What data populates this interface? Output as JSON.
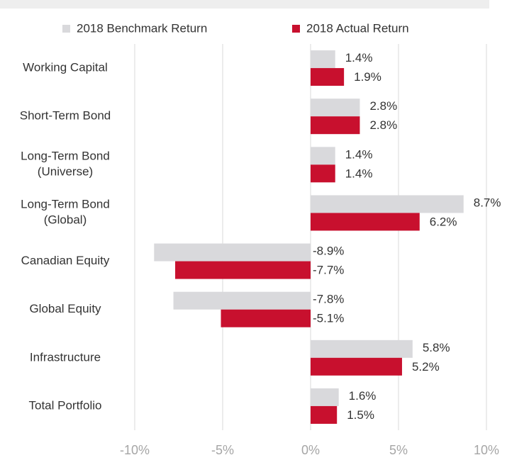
{
  "chart_data": {
    "type": "bar",
    "orientation": "horizontal",
    "categories": [
      "Working Capital",
      "Short-Term Bond",
      "Long-Term Bond (Universe)",
      "Long-Term Bond (Global)",
      "Canadian Equity",
      "Global Equity",
      "Infrastructure",
      "Total Portfolio"
    ],
    "series": [
      {
        "name": "2018 Benchmark Return",
        "color": "#d9d9dc",
        "values": [
          1.4,
          2.8,
          1.4,
          8.7,
          -8.9,
          -7.8,
          5.8,
          1.6
        ],
        "value_labels": [
          "1.4%",
          "2.8%",
          "1.4%",
          "8.7%",
          "-8.9%",
          "-7.8%",
          "5.8%",
          "1.6%"
        ]
      },
      {
        "name": "2018 Actual Return",
        "color": "#c8102e",
        "values": [
          1.9,
          2.8,
          1.4,
          6.2,
          -7.7,
          -5.1,
          5.2,
          1.5
        ],
        "value_labels": [
          "1.9%",
          "2.8%",
          "1.4%",
          "6.2%",
          "-7.7%",
          "-5.1%",
          "5.2%",
          "1.5%"
        ]
      }
    ],
    "xlim": [
      -10,
      10
    ],
    "xticks": [
      {
        "value": -10,
        "label": "-10%"
      },
      {
        "value": -5,
        "label": "-5%"
      },
      {
        "value": 0,
        "label": "0%"
      },
      {
        "value": 5,
        "label": "5%"
      },
      {
        "value": 10,
        "label": "10%"
      }
    ],
    "grid": true,
    "legend": "top"
  }
}
